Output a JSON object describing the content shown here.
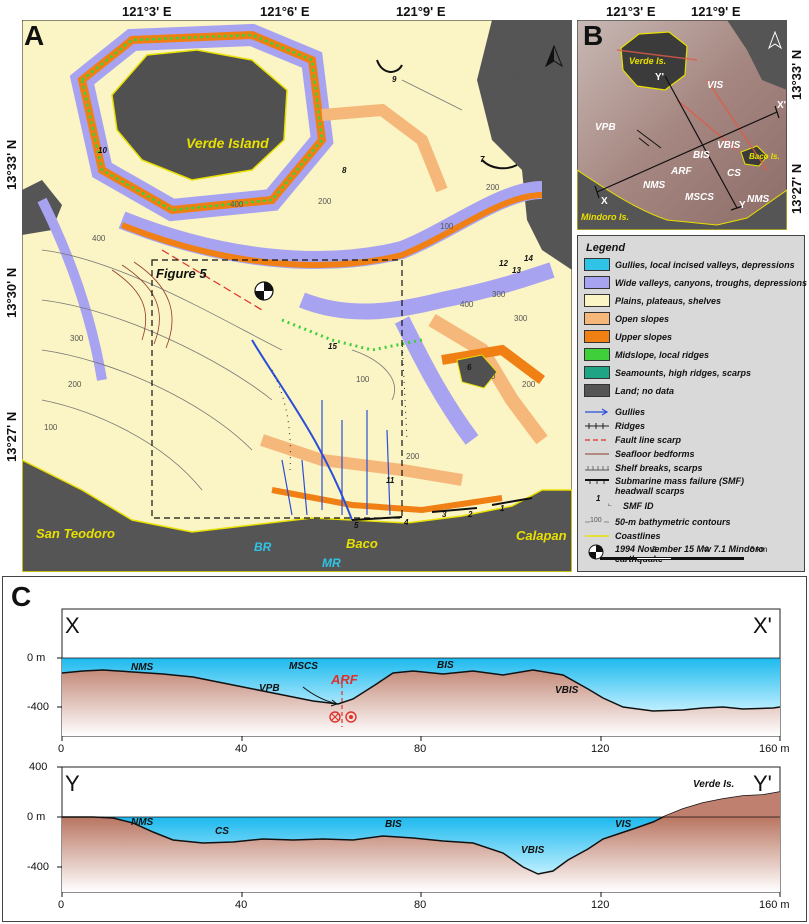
{
  "panelA": {
    "letter": "A",
    "top_lons": [
      "121°3' E",
      "121°6' E",
      "121°9' E"
    ],
    "left_lats": [
      "13°33' N",
      "13°30' N",
      "13°27' N"
    ],
    "places": {
      "verde_island": "Verde Island",
      "san_teodoro": "San Teodoro",
      "baco": "Baco",
      "calapan": "Calapan",
      "br": "BR",
      "mr": "MR",
      "figure5": "Figure 5"
    },
    "contours": [
      "400",
      "400",
      "300",
      "200",
      "100",
      "400",
      "300",
      "200",
      "100",
      "300",
      "200",
      "100",
      "100",
      "200",
      "200",
      "400"
    ],
    "smf_ids": [
      "10",
      "9",
      "8",
      "7",
      "12",
      "13",
      "14",
      "15",
      "6",
      "11",
      "5",
      "4",
      "3",
      "2",
      "1"
    ]
  },
  "panelB": {
    "letter": "B",
    "top_lons": [
      "121°3' E",
      "121°9' E"
    ],
    "right_lats": [
      "13°33' N",
      "13°27' N"
    ],
    "labels": [
      "Verde Is.",
      "VIS",
      "VPB",
      "VBIS",
      "BIS",
      "Baco Is.",
      "ARF",
      "CS",
      "MSCS",
      "NMS",
      "NMS",
      "Mindoro Is."
    ],
    "ends": [
      "X",
      "X'",
      "Y",
      "Y'"
    ]
  },
  "legend": {
    "title": "Legend",
    "areas": [
      {
        "label": "Gullies, local incised valleys, depressions",
        "color": "#2fc4e6"
      },
      {
        "label": "Wide valleys, canyons, troughs, depressions",
        "color": "#a8a3f0"
      },
      {
        "label": "Plains, plateaus, shelves",
        "color": "#fbf4c4"
      },
      {
        "label": "Open slopes",
        "color": "#f5b77a"
      },
      {
        "label": "Upper slopes",
        "color": "#f07f14"
      },
      {
        "label": "Midslope, local ridges",
        "color": "#3fcf3a"
      },
      {
        "label": "Seamounts, high ridges, scarps",
        "color": "#1fa585"
      },
      {
        "label": "Land; no data",
        "color": "#555555"
      }
    ],
    "lines": [
      {
        "label": "Gullies",
        "color": "#2a4fd8"
      },
      {
        "label": "Ridges",
        "color": "#222222"
      },
      {
        "label": "Fault line scarp",
        "color": "#e0302a"
      },
      {
        "label": "Seafloor bedforms",
        "color": "#8a3b2a"
      },
      {
        "label": "Shelf breaks, scarps",
        "color": "#555555"
      },
      {
        "label": "Submarine mass failure (SMF) headwall scarps",
        "color": "#111111"
      },
      {
        "label": "SMF ID",
        "color": "#111111"
      },
      {
        "label": "50-m bathymetric contours",
        "color": "#777777"
      },
      {
        "label": "Coastlines",
        "color": "#e8e000"
      },
      {
        "label": "1994 November 15 Mw 7.1 Mindoro earthquake",
        "color": "#111111"
      }
    ],
    "smf_sample_id": "1",
    "contour_sample": "100",
    "scale": {
      "ticks": [
        "0",
        "2",
        "4",
        "6 km"
      ]
    }
  },
  "panelC": {
    "letter": "C",
    "profileX": {
      "left": "X",
      "right": "X'",
      "y_ticks": [
        "0 m",
        "-400"
      ],
      "x_ticks": [
        "0",
        "40",
        "80",
        "120",
        "160 m"
      ],
      "labels": [
        "NMS",
        "MSCS",
        "ARF",
        "BIS",
        "VPB",
        "VBIS"
      ]
    },
    "profileY": {
      "left": "Y",
      "right": "Y'",
      "y_ticks": [
        "400",
        "0 m",
        "-400"
      ],
      "x_ticks": [
        "0",
        "40",
        "80",
        "120",
        "160 m"
      ],
      "labels": [
        "NMS",
        "CS",
        "BIS",
        "VBIS",
        "VIS",
        "Verde Is."
      ]
    }
  }
}
